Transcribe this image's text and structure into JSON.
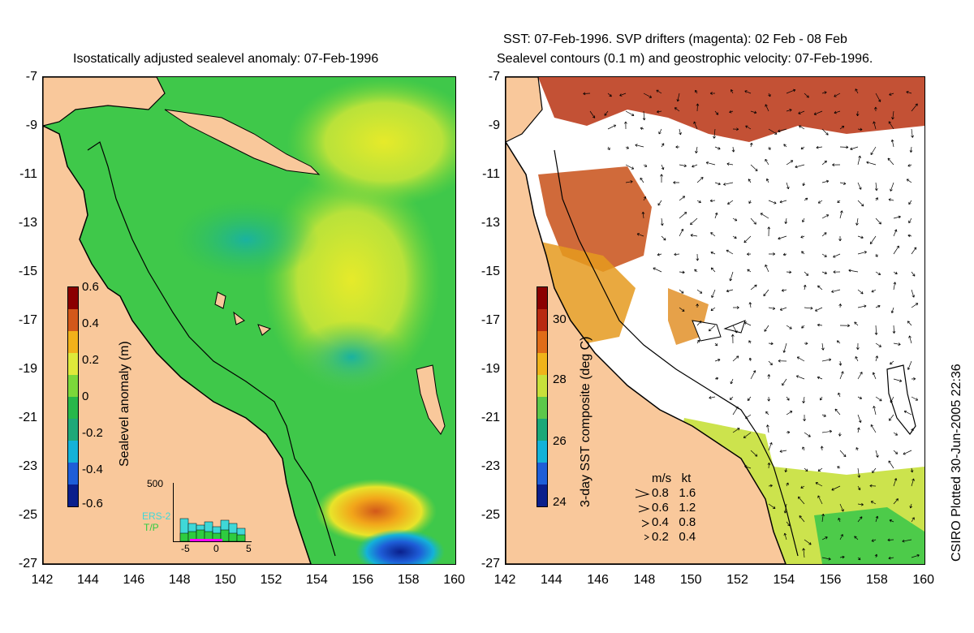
{
  "left": {
    "title": "Isostatically adjusted sealevel anomaly: 07-Feb-1996",
    "colorbar_label": "Sealevel anomaly (m)",
    "colorbar_ticks": [
      "0.6",
      "0.4",
      "0.2",
      "0",
      "-0.2",
      "-0.4",
      "-0.6"
    ],
    "colorbar_colors": [
      "#8b0000",
      "#d2581a",
      "#f2b11a",
      "#dfe93a",
      "#7cd83a",
      "#28b84a",
      "#1fa878",
      "#14b2d8",
      "#1e5ed8",
      "#0a1f8c"
    ],
    "hist_ymax": "500",
    "hist_legend": [
      "ERS-2",
      "T/P"
    ],
    "hist_xticks": [
      "-5",
      "0",
      "5"
    ],
    "hist_colors": {
      "ers2": "#3fd8d8",
      "tp": "#2ecc40",
      "marker": "#ff00ff"
    }
  },
  "right": {
    "title_line1": "SST: 07-Feb-1996. SVP drifters (magenta): 02 Feb - 08 Feb",
    "title_line2": "Sealevel contours (0.1 m) and geostrophic velocity: 07-Feb-1996.",
    "colorbar_label": "3-day SST composite (deg C)",
    "colorbar_ticks": [
      "30",
      "28",
      "26",
      "24"
    ],
    "colorbar_colors": [
      "#8b0000",
      "#b82a10",
      "#e06c18",
      "#f0b31a",
      "#c8e03a",
      "#5cc84a",
      "#1aa878",
      "#14b2d8",
      "#1e5ed8",
      "#0a1f8c"
    ],
    "legend_header": "m/s   kt",
    "legend_rows": [
      "0.8   1.6",
      "0.6   1.2",
      "0.4   0.8",
      "0.2   0.4"
    ]
  },
  "axes": {
    "y_ticks": [
      "-7",
      "-9",
      "-11",
      "-13",
      "-15",
      "-17",
      "-19",
      "-21",
      "-23",
      "-25",
      "-27"
    ],
    "x_ticks": [
      "142",
      "144",
      "146",
      "148",
      "150",
      "152",
      "154",
      "156",
      "158",
      "160"
    ]
  },
  "footer": "CSIRO Plotted 30-Jun-2005 22:36",
  "colors": {
    "land": "#f9c89b",
    "sea_green": "#3fc84a",
    "coast": "#000000"
  }
}
